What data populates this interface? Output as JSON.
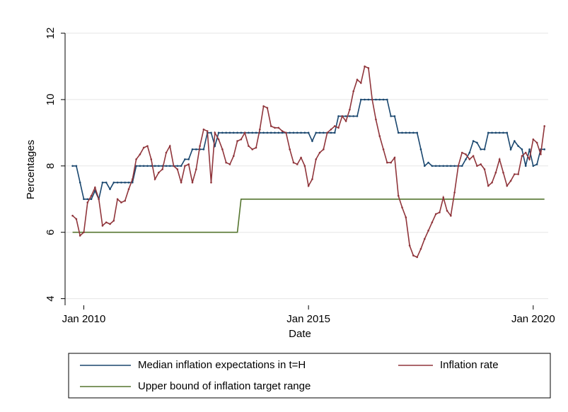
{
  "chart_data": {
    "type": "line",
    "ylabel": "Percentages",
    "xlabel": "Date",
    "x": [
      "2009-10",
      "2009-11",
      "2009-12",
      "2010-01",
      "2010-02",
      "2010-03",
      "2010-04",
      "2010-05",
      "2010-06",
      "2010-07",
      "2010-08",
      "2010-09",
      "2010-10",
      "2010-11",
      "2010-12",
      "2011-01",
      "2011-02",
      "2011-03",
      "2011-04",
      "2011-05",
      "2011-06",
      "2011-07",
      "2011-08",
      "2011-09",
      "2011-10",
      "2011-11",
      "2011-12",
      "2012-01",
      "2012-02",
      "2012-03",
      "2012-04",
      "2012-05",
      "2012-06",
      "2012-07",
      "2012-08",
      "2012-09",
      "2012-10",
      "2012-11",
      "2012-12",
      "2013-01",
      "2013-02",
      "2013-03",
      "2013-04",
      "2013-05",
      "2013-06",
      "2013-07",
      "2013-08",
      "2013-09",
      "2013-10",
      "2013-11",
      "2013-12",
      "2014-01",
      "2014-02",
      "2014-03",
      "2014-04",
      "2014-05",
      "2014-06",
      "2014-07",
      "2014-08",
      "2014-09",
      "2014-10",
      "2014-11",
      "2014-12",
      "2015-01",
      "2015-02",
      "2015-03",
      "2015-04",
      "2015-05",
      "2015-06",
      "2015-07",
      "2015-08",
      "2015-09",
      "2015-10",
      "2015-11",
      "2015-12",
      "2016-01",
      "2016-02",
      "2016-03",
      "2016-04",
      "2016-05",
      "2016-06",
      "2016-07",
      "2016-08",
      "2016-09",
      "2016-10",
      "2016-11",
      "2016-12",
      "2017-01",
      "2017-02",
      "2017-03",
      "2017-04",
      "2017-05",
      "2017-06",
      "2017-07",
      "2017-08",
      "2017-09",
      "2017-10",
      "2017-11",
      "2017-12",
      "2018-01",
      "2018-02",
      "2018-03",
      "2018-04",
      "2018-05",
      "2018-06",
      "2018-07",
      "2018-08",
      "2018-09",
      "2018-10",
      "2018-11",
      "2018-12",
      "2019-01",
      "2019-02",
      "2019-03",
      "2019-04",
      "2019-05",
      "2019-06",
      "2019-07",
      "2019-08",
      "2019-09",
      "2019-10",
      "2019-11",
      "2019-12",
      "2020-01",
      "2020-02",
      "2020-03",
      "2020-04"
    ],
    "series": [
      {
        "name": "Median inflation expectations in t=H",
        "color": "#1a476f",
        "values": [
          8,
          8,
          7.5,
          7,
          7,
          7,
          7.25,
          7,
          7.5,
          7.5,
          7.3,
          7.5,
          7.5,
          7.5,
          7.5,
          7.5,
          7.5,
          8,
          8,
          8,
          8,
          8,
          8,
          8,
          8,
          8,
          8,
          8,
          8,
          8,
          8.2,
          8.2,
          8.5,
          8.5,
          8.5,
          8.5,
          9,
          9,
          8.6,
          9,
          9,
          9,
          9,
          9,
          9,
          9,
          9,
          9,
          9,
          9,
          9,
          9,
          9,
          9,
          9,
          9,
          9,
          9,
          9,
          9,
          9,
          9,
          9,
          9,
          8.75,
          9,
          9,
          9,
          9,
          9,
          9,
          9.5,
          9.5,
          9.5,
          9.5,
          9.5,
          9.5,
          10,
          10,
          10,
          10,
          10,
          10,
          10,
          10,
          9.5,
          9.5,
          9,
          9,
          9,
          9,
          9,
          9,
          8.5,
          8,
          8.1,
          8,
          8,
          8,
          8,
          8,
          8,
          8,
          8,
          8,
          8.2,
          8.4,
          8.75,
          8.7,
          8.5,
          8.5,
          9,
          9,
          9,
          9,
          9,
          9,
          8.5,
          8.75,
          8.6,
          8.5,
          8,
          8.5,
          8,
          8.05,
          8.5,
          8.5
        ]
      },
      {
        "name": "Inflation rate",
        "color": "#90353b",
        "values": [
          6.5,
          6.4,
          5.9,
          6.0,
          6.9,
          7.1,
          7.35,
          7.0,
          6.2,
          6.3,
          6.25,
          6.35,
          7.0,
          6.9,
          6.95,
          7.3,
          7.6,
          8.2,
          8.35,
          8.55,
          8.6,
          8.2,
          7.6,
          7.8,
          7.9,
          8.4,
          8.6,
          8.0,
          7.9,
          7.5,
          8.0,
          8.05,
          7.5,
          7.9,
          8.6,
          9.1,
          9.05,
          7.5,
          9.0,
          8.8,
          8.5,
          8.1,
          8.05,
          8.3,
          8.75,
          8.8,
          9.0,
          8.6,
          8.5,
          8.55,
          9.1,
          9.8,
          9.75,
          9.2,
          9.15,
          9.15,
          9.05,
          9.0,
          8.5,
          8.1,
          8.05,
          8.25,
          8.0,
          7.4,
          7.6,
          8.2,
          8.4,
          8.5,
          9.0,
          9.1,
          9.2,
          9.15,
          9.5,
          9.35,
          9.7,
          10.25,
          10.6,
          10.5,
          11.0,
          10.95,
          10.0,
          9.4,
          8.9,
          8.5,
          8.1,
          8.1,
          8.25,
          7.1,
          6.75,
          6.45,
          5.6,
          5.3,
          5.25,
          5.5,
          5.8,
          6.05,
          6.3,
          6.55,
          6.6,
          7.05,
          6.65,
          6.5,
          7.2,
          8.0,
          8.4,
          8.35,
          8.2,
          8.3,
          8.0,
          8.05,
          7.9,
          7.4,
          7.5,
          7.8,
          8.2,
          7.8,
          7.4,
          7.55,
          7.75,
          7.75,
          8.3,
          8.4,
          8.2,
          8.8,
          8.7,
          8.35,
          9.2
        ]
      },
      {
        "name": "Upper bound of inflation target range",
        "color": "#55752f",
        "values": [
          6,
          6,
          6,
          6,
          6,
          6,
          6,
          6,
          6,
          6,
          6,
          6,
          6,
          6,
          6,
          6,
          6,
          6,
          6,
          6,
          6,
          6,
          6,
          6,
          6,
          6,
          6,
          6,
          6,
          6,
          6,
          6,
          6,
          6,
          6,
          6,
          6,
          6,
          6,
          6,
          6,
          6,
          6,
          6,
          6,
          7,
          7,
          7,
          7,
          7,
          7,
          7,
          7,
          7,
          7,
          7,
          7,
          7,
          7,
          7,
          7,
          7,
          7,
          7,
          7,
          7,
          7,
          7,
          7,
          7,
          7,
          7,
          7,
          7,
          7,
          7,
          7,
          7,
          7,
          7,
          7,
          7,
          7,
          7,
          7,
          7,
          7,
          7,
          7,
          7,
          7,
          7,
          7,
          7,
          7,
          7,
          7,
          7,
          7,
          7,
          7,
          7,
          7,
          7,
          7,
          7,
          7,
          7,
          7,
          7,
          7,
          7,
          7,
          7,
          7,
          7,
          7,
          7,
          7,
          7,
          7,
          7,
          7,
          7,
          7,
          7,
          7
        ]
      }
    ],
    "xlim": [
      "2009-08",
      "2020-05"
    ],
    "xticks": [
      {
        "value": "2010-01",
        "label": "Jan 2010"
      },
      {
        "value": "2015-01",
        "label": "Jan 2015"
      },
      {
        "value": "2020-01",
        "label": "Jan 2020"
      }
    ],
    "ylim": [
      3.8,
      12
    ],
    "yticks": [
      4,
      6,
      8,
      10,
      12
    ],
    "grid": true,
    "legend": "bottom"
  }
}
